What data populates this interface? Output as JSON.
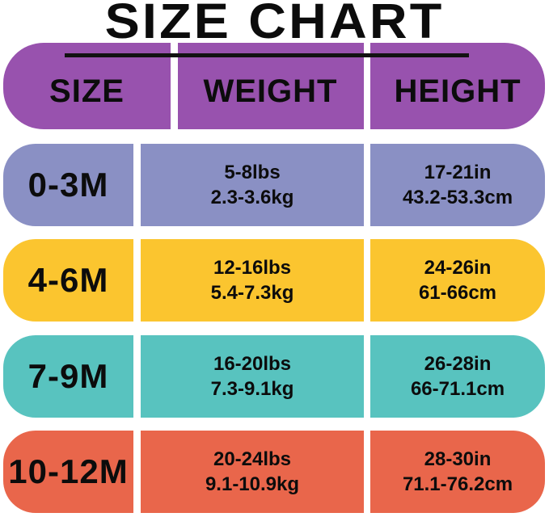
{
  "title": "SIZE CHART",
  "colors": {
    "background": "#ffffff",
    "header": "#9852ae",
    "underline": "#121212",
    "divider": "#ffffff",
    "text": "#0c0c0c"
  },
  "chart_data": {
    "type": "table",
    "title": "SIZE CHART",
    "columns": [
      "SIZE",
      "WEIGHT",
      "HEIGHT"
    ],
    "rows": [
      {
        "size": "0-3M",
        "weight": [
          "5-8lbs",
          "2.3-3.6kg"
        ],
        "height": [
          "17-21in",
          "43.2-53.3cm"
        ],
        "color": "#8a90c4"
      },
      {
        "size": "4-6M",
        "weight": [
          "12-16lbs",
          "5.4-7.3kg"
        ],
        "height": [
          "24-26in",
          "61-66cm"
        ],
        "color": "#fbc52f"
      },
      {
        "size": "7-9M",
        "weight": [
          "16-20lbs",
          "7.3-9.1kg"
        ],
        "height": [
          "26-28in",
          "66-71.1cm"
        ],
        "color": "#58c3bf"
      },
      {
        "size": "10-12M",
        "weight": [
          "20-24lbs",
          "9.1-10.9kg"
        ],
        "height": [
          "28-30in",
          "71.1-76.2cm"
        ],
        "color": "#e9664b"
      }
    ]
  }
}
